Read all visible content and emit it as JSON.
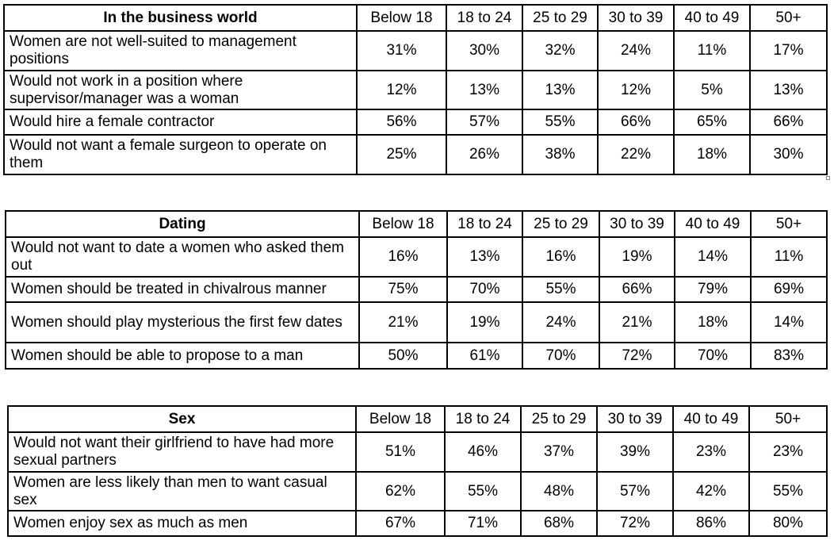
{
  "chart_data": [
    {
      "type": "table",
      "title": "In the business world",
      "columns": [
        "Below 18",
        "18 to 24",
        "25 to 29",
        "30 to 39",
        "40 to 49",
        "50+"
      ],
      "rows": [
        {
          "label": "Women are not well-suited to management positions",
          "values": [
            "31%",
            "30%",
            "32%",
            "24%",
            "11%",
            "17%"
          ]
        },
        {
          "label": "Would not work in a position where supervisor/manager was a woman",
          "values": [
            "12%",
            "13%",
            "13%",
            "12%",
            "5%",
            "13%"
          ]
        },
        {
          "label": "Would hire a female contractor",
          "values": [
            "56%",
            "57%",
            "55%",
            "66%",
            "65%",
            "66%"
          ]
        },
        {
          "label": "Would not want a female surgeon to operate on them",
          "values": [
            "25%",
            "26%",
            "38%",
            "22%",
            "18%",
            "30%"
          ]
        }
      ]
    },
    {
      "type": "table",
      "title": "Dating",
      "columns": [
        "Below 18",
        "18 to 24",
        "25 to 29",
        "30 to 39",
        "40 to 49",
        "50+"
      ],
      "rows": [
        {
          "label": "Would not want to date a women who asked them out",
          "values": [
            "16%",
            "13%",
            "16%",
            "19%",
            "14%",
            "11%"
          ]
        },
        {
          "label": "Women should be treated in chivalrous manner",
          "values": [
            "75%",
            "70%",
            "55%",
            "66%",
            "79%",
            "69%"
          ]
        },
        {
          "label": "Women should play mysterious the first few dates",
          "values": [
            "21%",
            "19%",
            "24%",
            "21%",
            "18%",
            "14%"
          ]
        },
        {
          "label": "Women should be able to propose to a man",
          "values": [
            "50%",
            "61%",
            "70%",
            "72%",
            "70%",
            "83%"
          ]
        }
      ]
    },
    {
      "type": "table",
      "title": "Sex",
      "columns": [
        "Below 18",
        "18 to 24",
        "25 to 29",
        "30 to 39",
        "40 to 49",
        "50+"
      ],
      "rows": [
        {
          "label": "Would not want their girlfriend to have had more sexual partners",
          "values": [
            "51%",
            "46%",
            "37%",
            "39%",
            "23%",
            "23%"
          ]
        },
        {
          "label": "Women are less likely than men to want casual sex",
          "values": [
            "62%",
            "55%",
            "48%",
            "57%",
            "42%",
            "55%"
          ]
        },
        {
          "label": "Women enjoy sex as much as men",
          "values": [
            "67%",
            "71%",
            "68%",
            "72%",
            "86%",
            "80%"
          ]
        }
      ]
    }
  ]
}
